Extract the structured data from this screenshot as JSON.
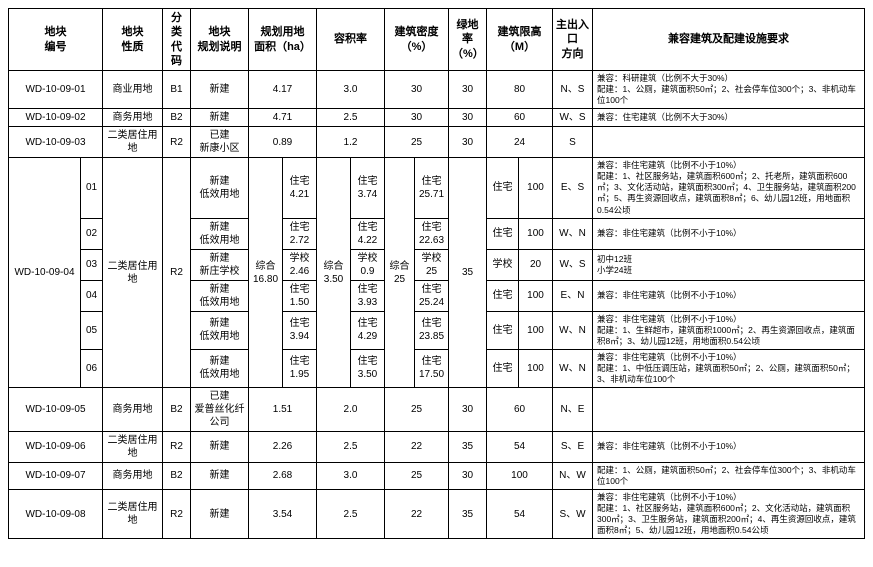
{
  "headers": {
    "col1": "地块\n编号",
    "col2": "地块\n性质",
    "col3": "分类\n代码",
    "col4": "地块\n规划说明",
    "col5": "规划用地\n面积（ha）",
    "col6": "容积率",
    "col7": "建筑密度\n（%）",
    "col8": "绿地率\n（%）",
    "col9": "建筑限高\n（M）",
    "col10": "主出入口\n方向",
    "col11": "兼容建筑及配建设施要求"
  },
  "rows": {
    "r1": {
      "id": "WD-10-09-01",
      "nature": "商业用地",
      "code": "B1",
      "plan": "新建",
      "area": "4.17",
      "far": "3.0",
      "density": "30",
      "green": "30",
      "height": "80",
      "entrance": "N、S",
      "req": "兼容：科研建筑（比例不大于30%）\n配建：1、公厕，建筑面积50㎡；2、社会停车位300个；3、非机动车位100个"
    },
    "r2": {
      "id": "WD-10-09-02",
      "nature": "商务用地",
      "code": "B2",
      "plan": "新建",
      "area": "4.71",
      "far": "2.5",
      "density": "30",
      "green": "30",
      "height": "60",
      "entrance": "W、S",
      "req": "兼容：住宅建筑（比例不大于30%）"
    },
    "r3": {
      "id": "WD-10-09-03",
      "nature": "二类居住用地",
      "code": "R2",
      "plan": "已建\n新康小区",
      "area": "0.89",
      "far": "1.2",
      "density": "25",
      "green": "30",
      "height": "24",
      "entrance": "S",
      "req": ""
    },
    "r4": {
      "id": "WD-10-09-04",
      "nature": "二类居住用地",
      "code": "R2",
      "area_total_label": "综合",
      "area_total": "16.80",
      "far_total_label": "综合",
      "far_total": "3.50",
      "den_total_label": "综合",
      "den_total": "25",
      "green": "35",
      "subs": {
        "s1": {
          "sub": "01",
          "plan": "新建\n低效用地",
          "area_l": "住宅",
          "area_v": "4.21",
          "far_l": "住宅",
          "far_v": "3.74",
          "den_l": "住宅",
          "den_v": "25.71",
          "hgt_l": "住宅",
          "hgt_v": "100",
          "ent": "E、S",
          "req": "兼容：非住宅建筑（比例不小于10%）\n配建：1、社区服务站，建筑面积600㎡；2、托老所，建筑面积600㎡；3、文化活动站，建筑面积300㎡；4、卫生服务站，建筑面积200㎡；5、再生资源回收点，建筑面积8㎡；6、幼儿园12班，用地面积0.54公顷"
        },
        "s2": {
          "sub": "02",
          "plan": "新建\n低效用地",
          "area_l": "住宅",
          "area_v": "2.72",
          "far_l": "住宅",
          "far_v": "4.22",
          "den_l": "住宅",
          "den_v": "22.63",
          "hgt_l": "住宅",
          "hgt_v": "100",
          "ent": "W、N",
          "req": "兼容：非住宅建筑（比例不小于10%）"
        },
        "s3": {
          "sub": "03",
          "plan": "新建\n新庄学校",
          "area_l": "学校",
          "area_v": "2.46",
          "far_l": "学校",
          "far_v": "0.9",
          "den_l": "学校",
          "den_v": "25",
          "hgt_l": "学校",
          "hgt_v": "20",
          "ent": "W、S",
          "req": "初中12班\n小学24班"
        },
        "s4": {
          "sub": "04",
          "plan": "新建\n低效用地",
          "area_l": "住宅",
          "area_v": "1.50",
          "far_l": "住宅",
          "far_v": "3.93",
          "den_l": "住宅",
          "den_v": "25.24",
          "hgt_l": "住宅",
          "hgt_v": "100",
          "ent": "E、N",
          "req": "兼容：非住宅建筑（比例不小于10%）"
        },
        "s5": {
          "sub": "05",
          "plan": "新建\n低效用地",
          "area_l": "住宅",
          "area_v": "3.94",
          "far_l": "住宅",
          "far_v": "4.29",
          "den_l": "住宅",
          "den_v": "23.85",
          "hgt_l": "住宅",
          "hgt_v": "100",
          "ent": "W、N",
          "req": "兼容：非住宅建筑（比例不小于10%）\n配建：1、生鲜超市，建筑面积1000㎡；2、再生资源回收点，建筑面积8㎡；3、幼儿园12班，用地面积0.54公顷"
        },
        "s6": {
          "sub": "06",
          "plan": "新建\n低效用地",
          "area_l": "住宅",
          "area_v": "1.95",
          "far_l": "住宅",
          "far_v": "3.50",
          "den_l": "住宅",
          "den_v": "17.50",
          "hgt_l": "住宅",
          "hgt_v": "100",
          "ent": "W、N",
          "req": "兼容：非住宅建筑（比例不小于10%）\n配建：1、中低压调压站，建筑面积50㎡；2、公厕，建筑面积50㎡；3、非机动车位100个"
        }
      }
    },
    "r5": {
      "id": "WD-10-09-05",
      "nature": "商务用地",
      "code": "B2",
      "plan": "已建\n爱普丝化纤公司",
      "area": "1.51",
      "far": "2.0",
      "density": "25",
      "green": "30",
      "height": "60",
      "entrance": "N、E",
      "req": ""
    },
    "r6": {
      "id": "WD-10-09-06",
      "nature": "二类居住用地",
      "code": "R2",
      "plan": "新建",
      "area": "2.26",
      "far": "2.5",
      "density": "22",
      "green": "35",
      "height": "54",
      "entrance": "S、E",
      "req": "兼容：非住宅建筑（比例不小于10%）"
    },
    "r7": {
      "id": "WD-10-09-07",
      "nature": "商务用地",
      "code": "B2",
      "plan": "新建",
      "area": "2.68",
      "far": "3.0",
      "density": "25",
      "green": "30",
      "height": "100",
      "entrance": "N、W",
      "req": "配建：1、公厕，建筑面积50㎡；2、社会停车位300个；3、非机动车位100个"
    },
    "r8": {
      "id": "WD-10-09-08",
      "nature": "二类居住用地",
      "code": "R2",
      "plan": "新建",
      "area": "3.54",
      "far": "2.5",
      "density": "22",
      "green": "35",
      "height": "54",
      "entrance": "S、W",
      "req": "兼容：非住宅建筑（比例不小于10%）\n配建：1、社区服务站，建筑面积600㎡；2、文化活动站，建筑面积300㎡；3、卫生服务站，建筑面积200㎡；4、再生资源回收点，建筑面积8㎡；5、幼儿园12班，用地面积0.54公顷"
    }
  }
}
